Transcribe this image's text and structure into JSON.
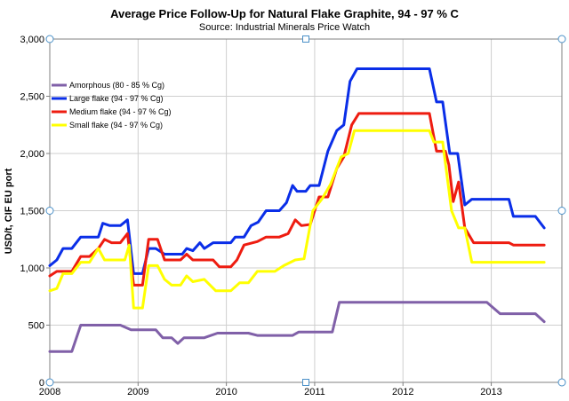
{
  "chart_data": {
    "type": "line",
    "title": "Average Price Follow-Up for Natural Flake Graphite, 94 - 97 % C",
    "subtitle": "Source: Industrial Minerals Price Watch",
    "xlabel": "",
    "ylabel": "USD/t, CIF EU port",
    "xlim": [
      2008.0,
      2013.8
    ],
    "ylim": [
      0,
      3000
    ],
    "x_ticks": [
      "2008",
      "2009",
      "2010",
      "2011",
      "2012",
      "2013"
    ],
    "y_ticks": [
      "0",
      "500",
      "1,000",
      "1,500",
      "2,000",
      "2,500",
      "3,000"
    ],
    "y_tick_values": [
      0,
      500,
      1000,
      1500,
      2000,
      2500,
      3000
    ],
    "grid": true,
    "legend_position": "top-left",
    "series": [
      {
        "name": "Amorphous (80 - 85 % Cg)",
        "color": "#8060a8",
        "points": [
          [
            2008.0,
            270
          ],
          [
            2008.25,
            270
          ],
          [
            2008.35,
            500
          ],
          [
            2008.8,
            500
          ],
          [
            2008.92,
            460
          ],
          [
            2009.2,
            460
          ],
          [
            2009.28,
            390
          ],
          [
            2009.38,
            390
          ],
          [
            2009.45,
            340
          ],
          [
            2009.52,
            390
          ],
          [
            2009.75,
            390
          ],
          [
            2009.9,
            430
          ],
          [
            2010.25,
            430
          ],
          [
            2010.35,
            410
          ],
          [
            2010.75,
            410
          ],
          [
            2010.82,
            440
          ],
          [
            2011.2,
            440
          ],
          [
            2011.28,
            700
          ],
          [
            2012.95,
            700
          ],
          [
            2013.1,
            600
          ],
          [
            2013.5,
            600
          ],
          [
            2013.6,
            530
          ]
        ]
      },
      {
        "name": "Large flake (94 - 97 % Cg)",
        "color": "#0a2ee8",
        "points": [
          [
            2008.0,
            1020
          ],
          [
            2008.08,
            1070
          ],
          [
            2008.15,
            1170
          ],
          [
            2008.25,
            1170
          ],
          [
            2008.35,
            1270
          ],
          [
            2008.55,
            1270
          ],
          [
            2008.6,
            1390
          ],
          [
            2008.68,
            1370
          ],
          [
            2008.8,
            1370
          ],
          [
            2008.88,
            1420
          ],
          [
            2008.95,
            950
          ],
          [
            2009.05,
            950
          ],
          [
            2009.12,
            1170
          ],
          [
            2009.2,
            1170
          ],
          [
            2009.3,
            1120
          ],
          [
            2009.5,
            1120
          ],
          [
            2009.55,
            1170
          ],
          [
            2009.62,
            1150
          ],
          [
            2009.7,
            1220
          ],
          [
            2009.75,
            1170
          ],
          [
            2009.85,
            1220
          ],
          [
            2010.05,
            1220
          ],
          [
            2010.1,
            1270
          ],
          [
            2010.2,
            1270
          ],
          [
            2010.28,
            1370
          ],
          [
            2010.36,
            1400
          ],
          [
            2010.45,
            1500
          ],
          [
            2010.6,
            1500
          ],
          [
            2010.68,
            1570
          ],
          [
            2010.75,
            1720
          ],
          [
            2010.8,
            1670
          ],
          [
            2010.9,
            1670
          ],
          [
            2010.95,
            1720
          ],
          [
            2011.05,
            1720
          ],
          [
            2011.15,
            2020
          ],
          [
            2011.25,
            2200
          ],
          [
            2011.33,
            2250
          ],
          [
            2011.4,
            2630
          ],
          [
            2011.48,
            2740
          ],
          [
            2012.3,
            2740
          ],
          [
            2012.38,
            2450
          ],
          [
            2012.45,
            2450
          ],
          [
            2012.53,
            2000
          ],
          [
            2012.62,
            2000
          ],
          [
            2012.7,
            1550
          ],
          [
            2012.78,
            1600
          ],
          [
            2013.2,
            1600
          ],
          [
            2013.25,
            1450
          ],
          [
            2013.5,
            1450
          ],
          [
            2013.6,
            1350
          ]
        ]
      },
      {
        "name": "Medium flake (94 - 97 % Cg)",
        "color": "#ee1c10",
        "points": [
          [
            2008.0,
            930
          ],
          [
            2008.08,
            970
          ],
          [
            2008.25,
            970
          ],
          [
            2008.35,
            1100
          ],
          [
            2008.45,
            1100
          ],
          [
            2008.55,
            1170
          ],
          [
            2008.62,
            1250
          ],
          [
            2008.7,
            1220
          ],
          [
            2008.8,
            1220
          ],
          [
            2008.88,
            1300
          ],
          [
            2008.95,
            850
          ],
          [
            2009.05,
            850
          ],
          [
            2009.12,
            1250
          ],
          [
            2009.22,
            1250
          ],
          [
            2009.3,
            1070
          ],
          [
            2009.48,
            1070
          ],
          [
            2009.55,
            1120
          ],
          [
            2009.62,
            1070
          ],
          [
            2009.85,
            1070
          ],
          [
            2009.92,
            1010
          ],
          [
            2010.05,
            1010
          ],
          [
            2010.12,
            1070
          ],
          [
            2010.2,
            1200
          ],
          [
            2010.35,
            1230
          ],
          [
            2010.45,
            1270
          ],
          [
            2010.6,
            1270
          ],
          [
            2010.7,
            1300
          ],
          [
            2010.78,
            1420
          ],
          [
            2010.85,
            1370
          ],
          [
            2010.95,
            1380
          ],
          [
            2011.05,
            1620
          ],
          [
            2011.15,
            1620
          ],
          [
            2011.25,
            1870
          ],
          [
            2011.33,
            1970
          ],
          [
            2011.42,
            2250
          ],
          [
            2011.5,
            2350
          ],
          [
            2012.3,
            2350
          ],
          [
            2012.38,
            2020
          ],
          [
            2012.48,
            2020
          ],
          [
            2012.52,
            1900
          ],
          [
            2012.57,
            1580
          ],
          [
            2012.63,
            1750
          ],
          [
            2012.7,
            1350
          ],
          [
            2012.8,
            1220
          ],
          [
            2013.2,
            1220
          ],
          [
            2013.25,
            1200
          ],
          [
            2013.6,
            1200
          ]
        ]
      },
      {
        "name": "Small flake (94 - 97 % Cg)",
        "color": "#ffff00",
        "points": [
          [
            2008.0,
            800
          ],
          [
            2008.08,
            820
          ],
          [
            2008.15,
            950
          ],
          [
            2008.25,
            950
          ],
          [
            2008.35,
            1050
          ],
          [
            2008.45,
            1050
          ],
          [
            2008.55,
            1170
          ],
          [
            2008.62,
            1070
          ],
          [
            2008.85,
            1070
          ],
          [
            2008.9,
            1200
          ],
          [
            2008.95,
            650
          ],
          [
            2009.05,
            650
          ],
          [
            2009.12,
            1020
          ],
          [
            2009.22,
            1020
          ],
          [
            2009.3,
            900
          ],
          [
            2009.38,
            850
          ],
          [
            2009.48,
            850
          ],
          [
            2009.55,
            930
          ],
          [
            2009.62,
            880
          ],
          [
            2009.75,
            900
          ],
          [
            2009.88,
            800
          ],
          [
            2010.05,
            800
          ],
          [
            2010.15,
            870
          ],
          [
            2010.25,
            870
          ],
          [
            2010.35,
            970
          ],
          [
            2010.55,
            970
          ],
          [
            2010.65,
            1020
          ],
          [
            2010.78,
            1070
          ],
          [
            2010.88,
            1080
          ],
          [
            2010.98,
            1500
          ],
          [
            2011.08,
            1600
          ],
          [
            2011.18,
            1730
          ],
          [
            2011.3,
            1970
          ],
          [
            2011.38,
            2000
          ],
          [
            2011.45,
            2200
          ],
          [
            2012.3,
            2200
          ],
          [
            2012.35,
            2100
          ],
          [
            2012.45,
            2100
          ],
          [
            2012.55,
            1500
          ],
          [
            2012.63,
            1350
          ],
          [
            2012.7,
            1350
          ],
          [
            2012.78,
            1050
          ],
          [
            2013.6,
            1050
          ]
        ]
      }
    ]
  }
}
